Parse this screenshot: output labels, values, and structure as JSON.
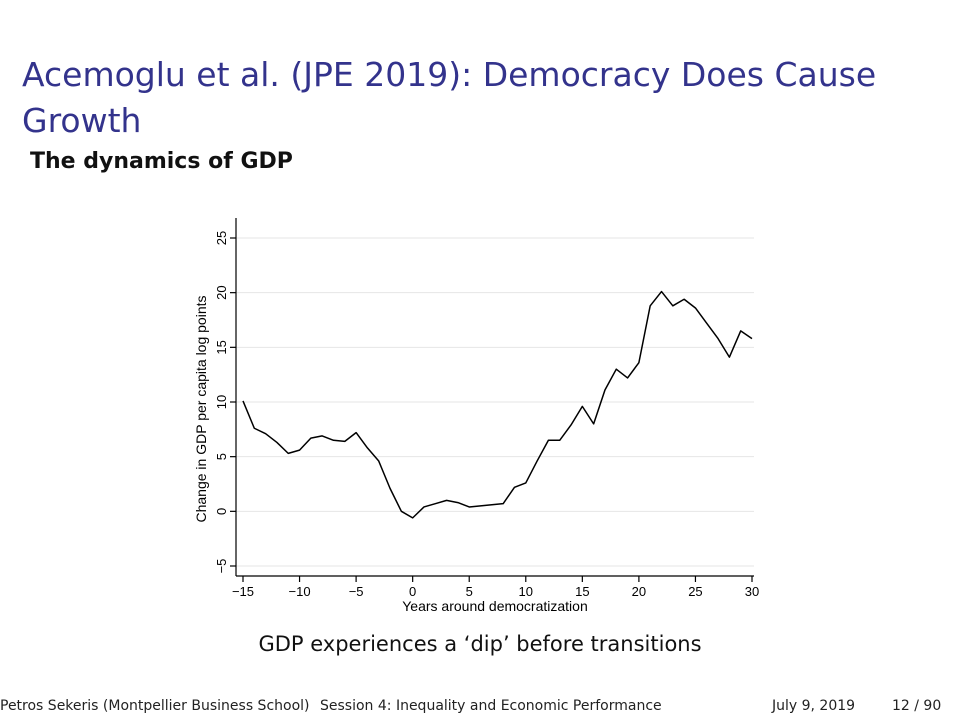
{
  "slide": {
    "title": "Acemoglu et al. (JPE 2019): Democracy Does Cause Growth",
    "subtitle": "The dynamics of GDP",
    "caption": "GDP experiences a ‘dip’ before transitions"
  },
  "footer": {
    "author": "Petros Sekeris (Montpellier Business School)",
    "session": "Session 4: Inequality and Economic Performance",
    "date": "July 9, 2019",
    "page": "12 / 90"
  },
  "colors": {
    "title": "#33338c",
    "line": "#000000",
    "grid": "#e6e6e6"
  },
  "chart_data": {
    "type": "line",
    "title": "",
    "xlabel": "Years around democratization",
    "ylabel": "Change in GDP per capita log points",
    "xlim": [
      -15,
      30
    ],
    "ylim": [
      -5,
      25
    ],
    "xticks": [
      -15,
      -10,
      -5,
      0,
      5,
      10,
      15,
      20,
      25,
      30
    ],
    "yticks": [
      -5,
      0,
      5,
      10,
      15,
      20,
      25
    ],
    "xtick_labels": [
      "−15",
      "−10",
      "−5",
      "0",
      "5",
      "10",
      "15",
      "20",
      "25",
      "30"
    ],
    "ytick_labels": [
      "−5",
      "0",
      "5",
      "10",
      "15",
      "20",
      "25"
    ],
    "grid": "horizontal",
    "legend": "none",
    "series": [
      {
        "x": [
          -15,
          -14,
          -13,
          -12,
          -11,
          -10,
          -9,
          -8,
          -7,
          -6,
          -5,
          -4,
          -3,
          -2,
          -1,
          0,
          1,
          2,
          3,
          4,
          5,
          6,
          7,
          8,
          9,
          10,
          11,
          12,
          13,
          14,
          15,
          16,
          17,
          18,
          19,
          20,
          21,
          22,
          23,
          24,
          25,
          26,
          27,
          28,
          29,
          30
        ],
        "values": [
          10.1,
          7.6,
          7.1,
          6.3,
          5.3,
          5.6,
          6.7,
          6.9,
          6.5,
          6.4,
          7.2,
          5.8,
          4.6,
          2.1,
          0.0,
          -0.6,
          0.4,
          0.7,
          1.0,
          0.8,
          0.4,
          0.5,
          0.6,
          0.7,
          2.2,
          2.6,
          4.6,
          6.5,
          6.5,
          7.9,
          9.6,
          8.0,
          11.1,
          13.0,
          12.2,
          13.6,
          18.8,
          20.1,
          18.8,
          19.4,
          18.6,
          17.2,
          15.8,
          14.1,
          16.5,
          15.8
        ]
      }
    ]
  }
}
